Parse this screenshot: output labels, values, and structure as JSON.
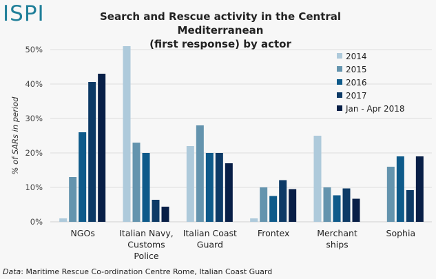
{
  "logo": "ISPI",
  "title_line1": "Search and Rescue activity in the Central Mediterranean",
  "title_line2": "(first response) by actor",
  "source_prefix": "Data",
  "source_text": ": Maritime Rescue Co-ordination Centre Rome, Italian Coast Guard",
  "chart_data": {
    "type": "bar",
    "title": "Search and Rescue activity in the Central Mediterranean (first response) by actor",
    "xlabel": "",
    "ylabel": "% of SARs in period",
    "ylim": [
      0,
      50
    ],
    "yticks": [
      "0%",
      "10%",
      "20%",
      "30%",
      "40%",
      "50%"
    ],
    "ytick_values": [
      0,
      10,
      20,
      30,
      40,
      50
    ],
    "grid": true,
    "legend_position": "top-right",
    "categories": [
      [
        "NGOs"
      ],
      [
        "Italian Navy,",
        "Customs",
        "Police"
      ],
      [
        "Italian Coast",
        "Guard"
      ],
      [
        "Frontex"
      ],
      [
        "Merchant",
        "ships"
      ],
      [
        "Sophia"
      ]
    ],
    "series": [
      {
        "name": "2014",
        "color": "#aecadb",
        "values": [
          1,
          51,
          22,
          1,
          25,
          null
        ]
      },
      {
        "name": "2015",
        "color": "#6494ae",
        "values": [
          13,
          23,
          28,
          10,
          10,
          16
        ]
      },
      {
        "name": "2016",
        "color": "#0e5a8a",
        "values": [
          26,
          20,
          20,
          7.5,
          7.7,
          19
        ]
      },
      {
        "name": "2017",
        "color": "#0d3a66",
        "values": [
          40.6,
          6.4,
          20,
          12.1,
          9.7,
          9.2
        ]
      },
      {
        "name": "Jan - Apr 2018",
        "color": "#081f47",
        "values": [
          43,
          4.4,
          17,
          9.5,
          6.7,
          19
        ]
      }
    ]
  }
}
